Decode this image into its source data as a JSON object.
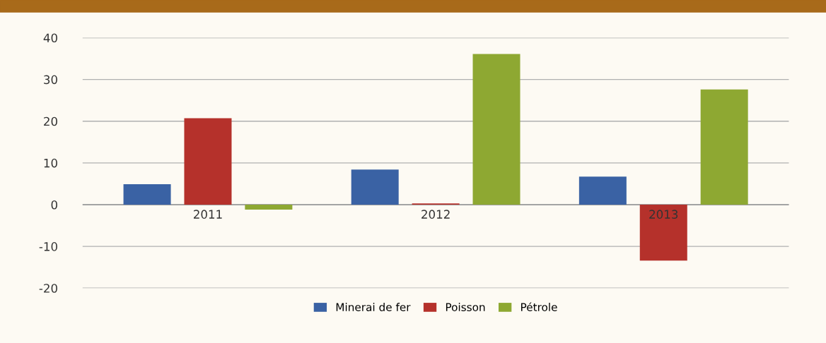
{
  "chart_data": {
    "type": "bar",
    "categories": [
      "2011",
      "2012",
      "2013"
    ],
    "series": [
      {
        "name": "Minerai de fer",
        "color": "#3a62a4",
        "values": [
          4.9,
          8.4,
          6.7
        ]
      },
      {
        "name": "Poisson",
        "color": "#b5312b",
        "values": [
          20.7,
          0.3,
          -13.4
        ]
      },
      {
        "name": "Pétrole",
        "color": "#8ea832",
        "values": [
          -1.2,
          36.1,
          27.6
        ]
      }
    ],
    "ylim": [
      -20,
      40
    ],
    "yticks": [
      -20,
      -10,
      0,
      10,
      20,
      30,
      40
    ],
    "grid": "y",
    "legend": "bottom"
  }
}
